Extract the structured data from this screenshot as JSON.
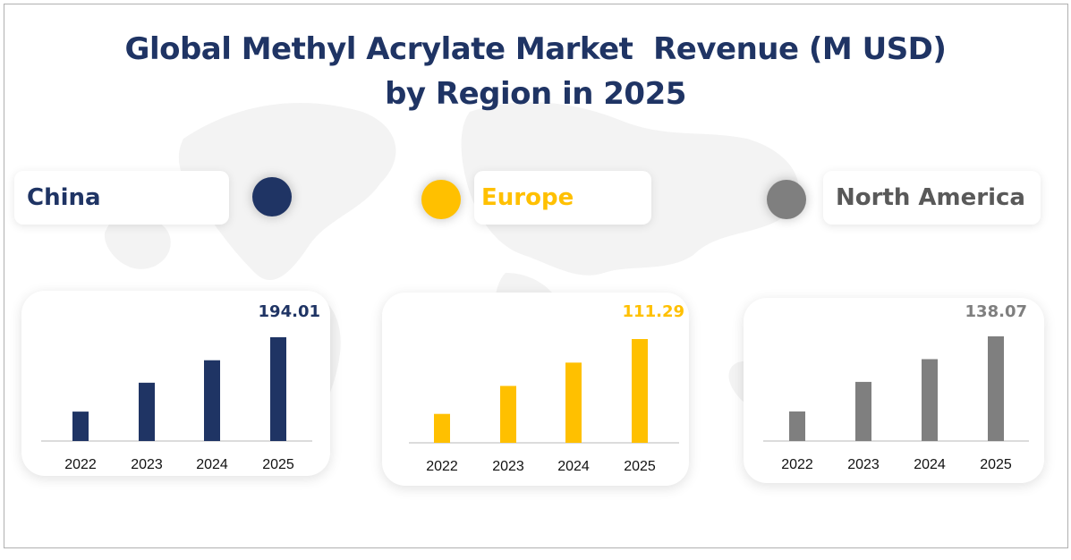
{
  "title": {
    "line1": "Global Methyl Acrylate Market  Revenue (M USD)",
    "line2": "by Region in 2025"
  },
  "colors": {
    "title": "#1f3464",
    "china": "#1f3464",
    "europe": "#ffc000",
    "north_america": "#7f7f7f"
  },
  "regions": [
    {
      "name": "China",
      "color": "#1f3464"
    },
    {
      "name": "Europe",
      "color": "#ffc000"
    },
    {
      "name": "North America",
      "color": "#7f7f7f"
    }
  ],
  "chart_data": [
    {
      "type": "bar",
      "categories": [
        "2022",
        "2023",
        "2024",
        "2025"
      ],
      "series": [
        {
          "name": "China",
          "values": [
            55,
            109,
            151,
            194.01
          ]
        }
      ],
      "data_label": "194.01",
      "ylim": [
        0,
        194.01
      ],
      "grid": false,
      "color": "#1f3464"
    },
    {
      "type": "bar",
      "categories": [
        "2022",
        "2023",
        "2024",
        "2025"
      ],
      "series": [
        {
          "name": "Europe",
          "values": [
            31,
            61,
            86,
            111.29
          ]
        }
      ],
      "data_label": "111.29",
      "ylim": [
        0,
        111.29
      ],
      "grid": false,
      "color": "#ffc000"
    },
    {
      "type": "bar",
      "categories": [
        "2022",
        "2023",
        "2024",
        "2025"
      ],
      "series": [
        {
          "name": "North America",
          "values": [
            39,
            78,
            108,
            138.07
          ]
        }
      ],
      "data_label": "138.07",
      "ylim": [
        0,
        138.07
      ],
      "grid": false,
      "color": "#7f7f7f"
    }
  ]
}
